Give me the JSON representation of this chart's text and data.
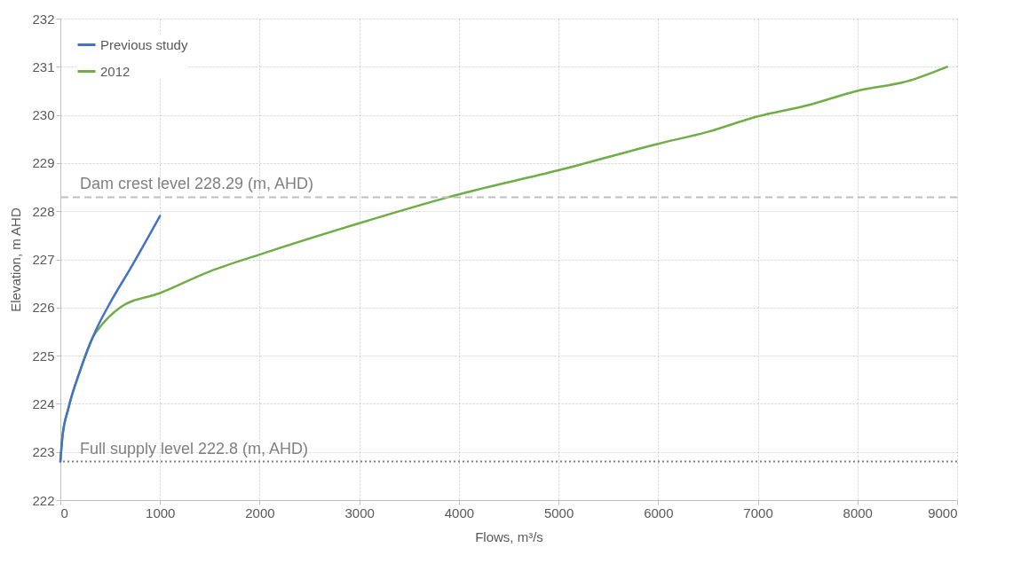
{
  "chart_data": {
    "type": "line",
    "xlabel": "Flows, m³/s",
    "ylabel": "Elevation, m AHD",
    "xlim": [
      0,
      9000
    ],
    "xticks": [
      0,
      1000,
      2000,
      3000,
      4000,
      5000,
      6000,
      7000,
      8000,
      9000
    ],
    "ylim": [
      222,
      232
    ],
    "yticks": [
      222,
      223,
      224,
      225,
      226,
      227,
      228,
      229,
      230,
      231,
      232
    ],
    "grid": true,
    "legend": "top left",
    "marker": "none",
    "line_style": "solid",
    "series": [
      {
        "name": "Previous study",
        "color": "#4472c4",
        "x": [
          0,
          20,
          80,
          200,
          350,
          500,
          700,
          1000
        ],
        "values": [
          222.8,
          223.3,
          223.9,
          224.7,
          225.5,
          226.1,
          226.8,
          227.9
        ]
      },
      {
        "name": "2012",
        "color": "#70ad47",
        "x": [
          0,
          20,
          80,
          200,
          330,
          400,
          600,
          1000,
          1500,
          2000,
          3000,
          4000,
          5000,
          6000,
          6500,
          7000,
          7500,
          8000,
          8500,
          8900
        ],
        "values": [
          222.8,
          223.3,
          223.9,
          224.7,
          225.4,
          225.6,
          226.0,
          226.3,
          226.75,
          227.1,
          227.75,
          228.35,
          228.85,
          229.4,
          229.65,
          229.97,
          230.2,
          230.5,
          230.7,
          231.0
        ]
      }
    ],
    "ref_lines": [
      {
        "axis": "y",
        "value": 228.29,
        "label": "Dam crest level 228.29 (m, AHD)",
        "color": "#bfbfbf",
        "line_style": "dashed"
      },
      {
        "axis": "y",
        "value": 222.8,
        "label": "Full supply level 222.8 (m, AHD)",
        "color": "#7f7f7f",
        "line_style": "dotted"
      }
    ]
  }
}
